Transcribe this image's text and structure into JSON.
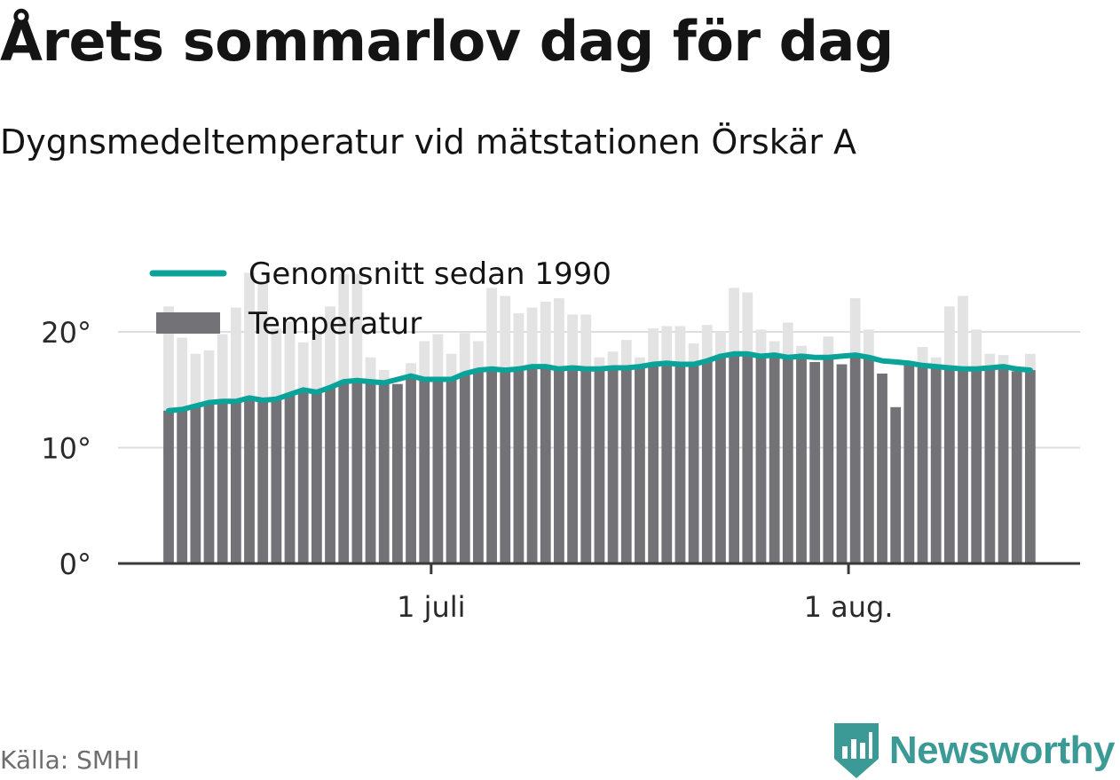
{
  "title": "Årets sommarlov dag för dag",
  "subtitle": "Dygnsmedeltemperatur vid mätstationen Örskär A",
  "source": "Källa: SMHI",
  "brand": {
    "name": "Newsworthy",
    "color": "#3c9a96",
    "logo_icon": "bar-chart-badge-icon"
  },
  "colors": {
    "bar": "#737277",
    "bar_above_avg": "#e3e3e3",
    "average_line": "#0aa39a",
    "gridline": "#dddddd",
    "axis": "#3a3a3a"
  },
  "chart_data": {
    "type": "bar",
    "title": "Årets sommarlov dag för dag",
    "subtitle": "Dygnsmedeltemperatur vid mätstationen Örskär A",
    "xlabel": "",
    "ylabel": "",
    "ylim": [
      0,
      25
    ],
    "yticks": [
      0,
      10,
      20
    ],
    "ytick_labels": [
      "0°",
      "10°",
      "20°"
    ],
    "xtick_labels": [
      "1 juli",
      "1 aug."
    ],
    "xtick_dates": [
      "07-01",
      "08-01"
    ],
    "first_date": "06-11",
    "grid": true,
    "legend_position": "top-left",
    "legend": [
      "Genomsnitt sedan 1990",
      "Temperatur"
    ],
    "series": [
      {
        "name": "Temperatur",
        "values": [
          22.2,
          19.5,
          18.1,
          18.4,
          19.8,
          22.1,
          25.1,
          24.2,
          20.3,
          20.9,
          19.1,
          19.8,
          22.2,
          25.0,
          25.0,
          17.8,
          16.7,
          15.5,
          17.3,
          19.2,
          19.8,
          18.1,
          19.9,
          19.2,
          23.8,
          23.1,
          21.6,
          22.1,
          22.6,
          22.9,
          21.5,
          21.5,
          17.8,
          18.3,
          19.3,
          17.8,
          20.3,
          20.5,
          20.5,
          19.0,
          20.6,
          20.0,
          23.8,
          23.4,
          20.2,
          19.2,
          20.8,
          18.8,
          17.4,
          19.6,
          17.2,
          22.9,
          20.2,
          16.4,
          13.5,
          17.3,
          18.7,
          17.8,
          22.2,
          23.1,
          20.2,
          18.1,
          18.0,
          16.6,
          18.1
        ]
      },
      {
        "name": "Genomsnitt sedan 1990",
        "values": [
          13.2,
          13.3,
          13.6,
          13.9,
          14.0,
          14.0,
          14.3,
          14.1,
          14.2,
          14.6,
          15.0,
          14.8,
          15.2,
          15.7,
          15.8,
          15.7,
          15.6,
          15.9,
          16.2,
          15.9,
          15.9,
          15.9,
          16.4,
          16.7,
          16.8,
          16.7,
          16.8,
          17.0,
          17.0,
          16.8,
          16.9,
          16.8,
          16.8,
          16.9,
          16.9,
          17.0,
          17.2,
          17.3,
          17.2,
          17.2,
          17.5,
          17.9,
          18.1,
          18.1,
          17.9,
          18.0,
          17.8,
          17.9,
          17.8,
          17.8,
          17.9,
          18.0,
          17.8,
          17.5,
          17.4,
          17.3,
          17.1,
          17.0,
          16.9,
          16.8,
          16.8,
          16.9,
          17.0,
          16.8,
          16.7
        ]
      }
    ]
  }
}
